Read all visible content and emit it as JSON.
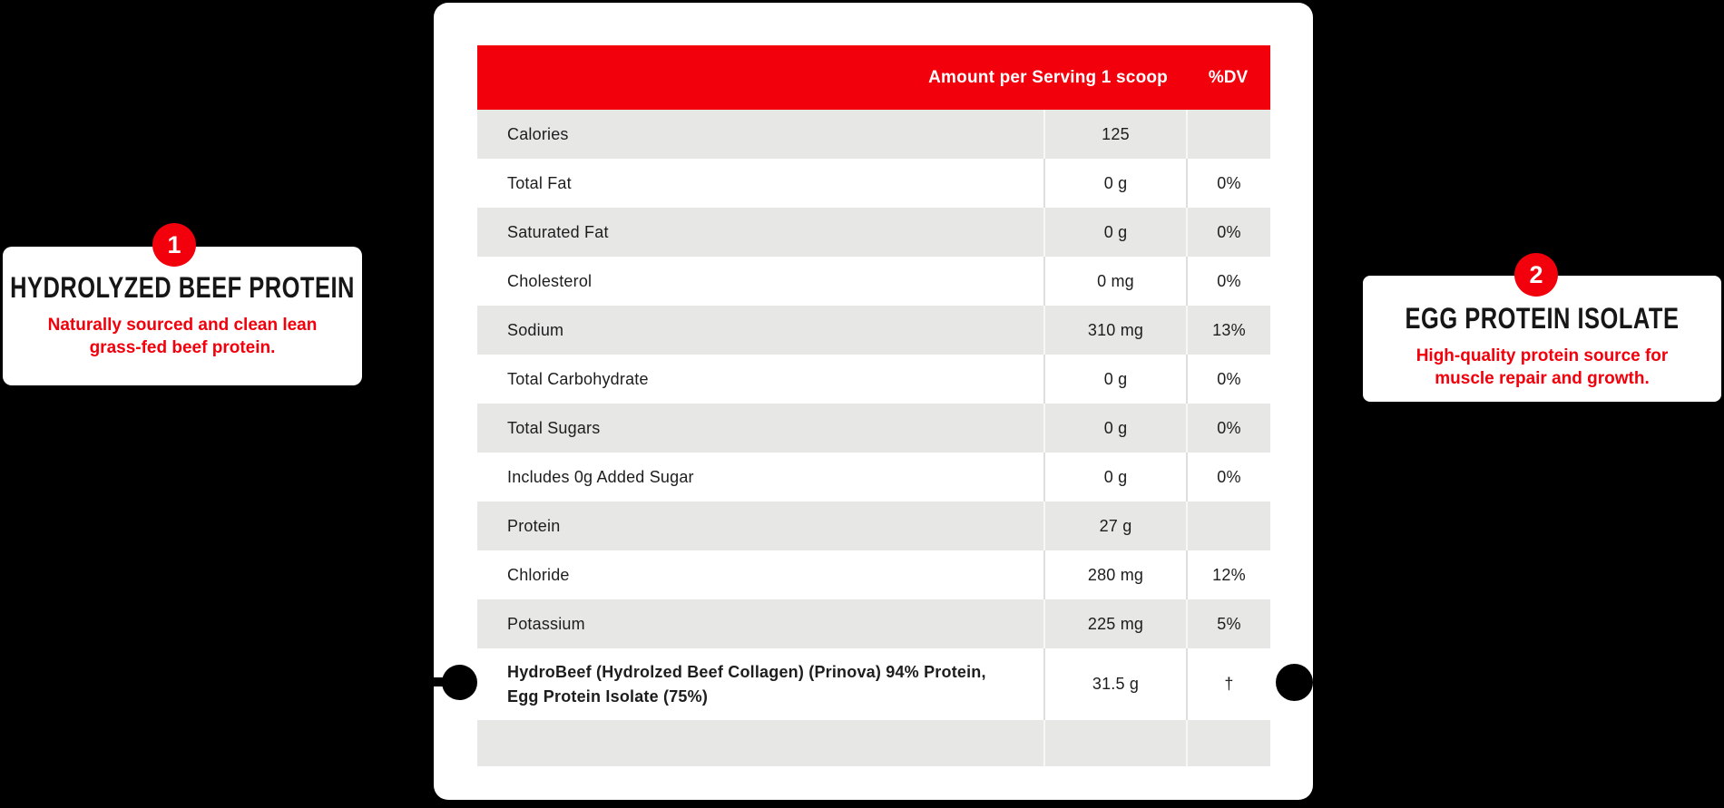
{
  "colors": {
    "accent_red": "#F2000B",
    "row_shade": "#E7E7E5",
    "text_dark": "#1D1D1D",
    "card_white": "#FFFFFF",
    "background_black": "#000000"
  },
  "callouts": [
    {
      "number": "1",
      "title": "HYDROLYZED BEEF PROTEIN",
      "description_lines": [
        "Naturally sourced and clean lean",
        "grass-fed beef protein."
      ]
    },
    {
      "number": "2",
      "title": "EGG PROTEIN ISOLATE",
      "description_lines": [
        "High-quality protein source for",
        "muscle repair and growth."
      ]
    }
  ],
  "table": {
    "header": {
      "amount_label": "Amount per Serving 1 scoop",
      "dv_label": "%DV"
    },
    "rows": [
      {
        "label": "Calories",
        "amount": "125",
        "dv": "",
        "shaded": true
      },
      {
        "label": "Total Fat",
        "amount": "0 g",
        "dv": "0%",
        "shaded": false
      },
      {
        "label": "Saturated Fat",
        "amount": "0 g",
        "dv": "0%",
        "shaded": true
      },
      {
        "label": "Cholesterol",
        "amount": "0 mg",
        "dv": "0%",
        "shaded": false
      },
      {
        "label": "Sodium",
        "amount": "310 mg",
        "dv": "13%",
        "shaded": true
      },
      {
        "label": "Total Carbohydrate",
        "amount": "0 g",
        "dv": "0%",
        "shaded": false
      },
      {
        "label": "Total Sugars",
        "amount": "0 g",
        "dv": "0%",
        "shaded": true
      },
      {
        "label": "Includes 0g Added Sugar",
        "amount": "0 g",
        "dv": "0%",
        "shaded": false
      },
      {
        "label": "Protein",
        "amount": "27 g",
        "dv": "",
        "shaded": true
      },
      {
        "label": "Chloride",
        "amount": "280 mg",
        "dv": "12%",
        "shaded": false
      },
      {
        "label": "Potassium",
        "amount": "225 mg",
        "dv": "5%",
        "shaded": true
      },
      {
        "label": "HydroBeef (Hydrolzed Beef Collagen) (Prinova) 94% Protein, Egg Protein Isolate (75%)",
        "amount": "31.5 g",
        "dv": "†",
        "shaded": false,
        "bold": true
      },
      {
        "label": "",
        "amount": "",
        "dv": "",
        "shaded": true,
        "spacer": true
      }
    ]
  }
}
